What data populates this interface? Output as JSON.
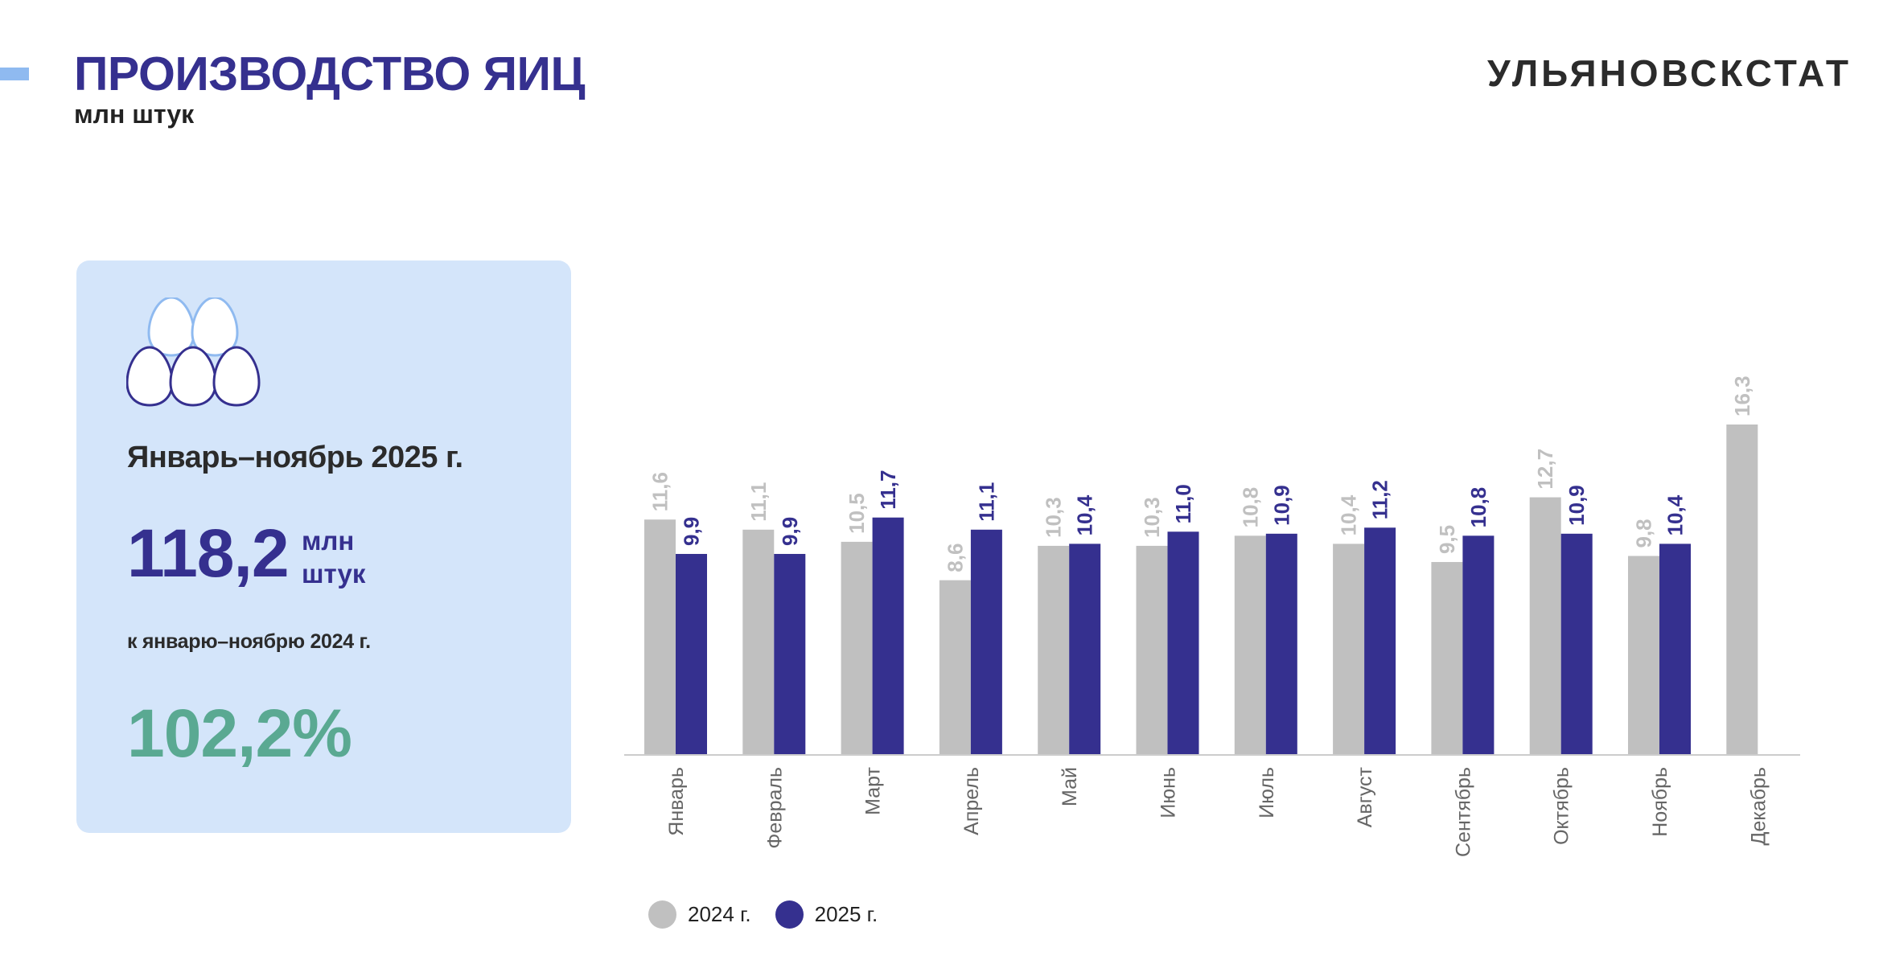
{
  "header": {
    "title": "ПРОИЗВОДСТВО ЯИЦ",
    "subtitle": "млн штук",
    "brand": "УЛЬЯНОВСКСТАТ"
  },
  "summary": {
    "icon": "eggs-icon",
    "period": "Январь–ноябрь 2025 г.",
    "value": "118,2",
    "unit_line1": "млн",
    "unit_line2": "штук",
    "compare_label": "к январю–ноябрю 2024 г.",
    "percent": "102,2%"
  },
  "colors": {
    "accent": "#35308f",
    "series_2024": "#c0c0c0",
    "series_2025": "#35308f",
    "card_bg": "#d4e5fa",
    "percent": "#5aa992"
  },
  "chart_data": {
    "type": "bar",
    "categories": [
      "Январь",
      "Февраль",
      "Март",
      "Апрель",
      "Май",
      "Июнь",
      "Июль",
      "Август",
      "Сентябрь",
      "Октябрь",
      "Ноябрь",
      "Декабрь"
    ],
    "series": [
      {
        "name": "2024 г.",
        "color": "#c0c0c0",
        "values": [
          11.6,
          11.1,
          10.5,
          8.6,
          10.3,
          10.3,
          10.8,
          10.4,
          9.5,
          12.7,
          9.8,
          16.3
        ],
        "labels": [
          "11,6",
          "11,1",
          "10,5",
          "8,6",
          "10,3",
          "10,3",
          "10,8",
          "10,4",
          "9,5",
          "12,7",
          "9,8",
          "16,3"
        ]
      },
      {
        "name": "2025 г.",
        "color": "#35308f",
        "values": [
          9.9,
          9.9,
          11.7,
          11.1,
          10.4,
          11.0,
          10.9,
          11.2,
          10.8,
          10.9,
          10.4,
          null
        ],
        "labels": [
          "9,9",
          "9,9",
          "11,7",
          "11,1",
          "10,4",
          "11,0",
          "10,9",
          "11,2",
          "10,8",
          "10,9",
          "10,4",
          ""
        ]
      }
    ],
    "ylim": [
      0,
      16.3
    ],
    "grid": false,
    "legend_position": "bottom-left"
  }
}
